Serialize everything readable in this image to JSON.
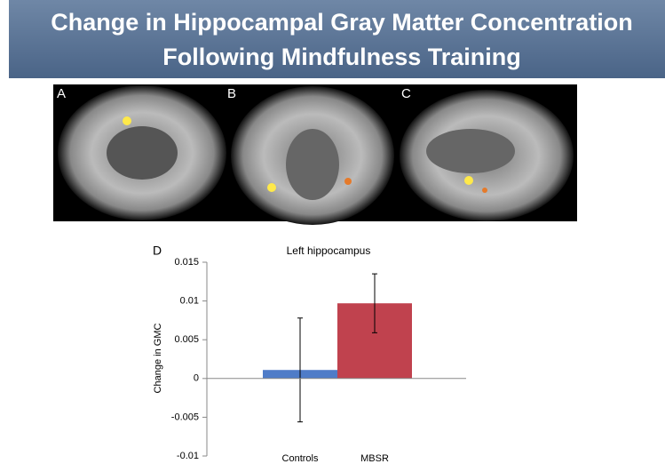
{
  "header": {
    "title_lines": [
      "Change in Hippocampal Gray Matter Concentration",
      "Following Mindfulness Training"
    ]
  },
  "images": {
    "labels": [
      "A",
      "B",
      "C"
    ]
  },
  "chart_data": {
    "type": "bar",
    "panel_label": "D",
    "title": "Left hippocampus",
    "ylabel": "Change in GMC",
    "categories": [
      "Controls",
      "MBSR"
    ],
    "values": [
      0.0011,
      0.0097
    ],
    "errors": [
      0.0067,
      0.0038
    ],
    "colors": [
      "#4f7cc8",
      "#c0424e"
    ],
    "ylim": [
      -0.01,
      0.015
    ],
    "yticks": [
      -0.01,
      -0.005,
      0,
      0.005,
      0.01,
      0.015
    ],
    "grid": false
  }
}
